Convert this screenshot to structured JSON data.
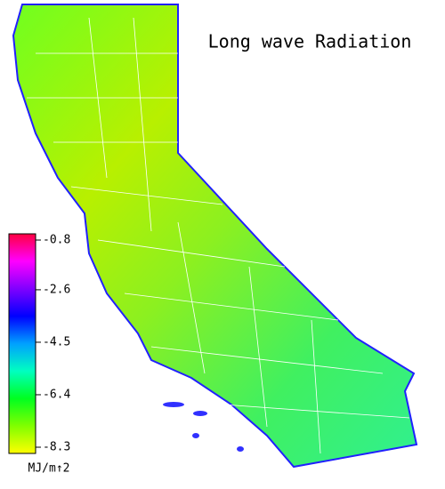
{
  "title": "Long wave Radiation",
  "colorbar": {
    "lim": [
      -8.3,
      -0.8
    ],
    "ticks": [
      -0.8,
      -2.6,
      -4.5,
      -6.4,
      -8.3
    ],
    "unit": "MJ/m↑2",
    "colors": [
      "#ffff00",
      "#80ff00",
      "#00ff20",
      "#00ffc0",
      "#00a0ff",
      "#0000ff",
      "#8000ff",
      "#ff00ff",
      "#ff0040"
    ]
  }
}
